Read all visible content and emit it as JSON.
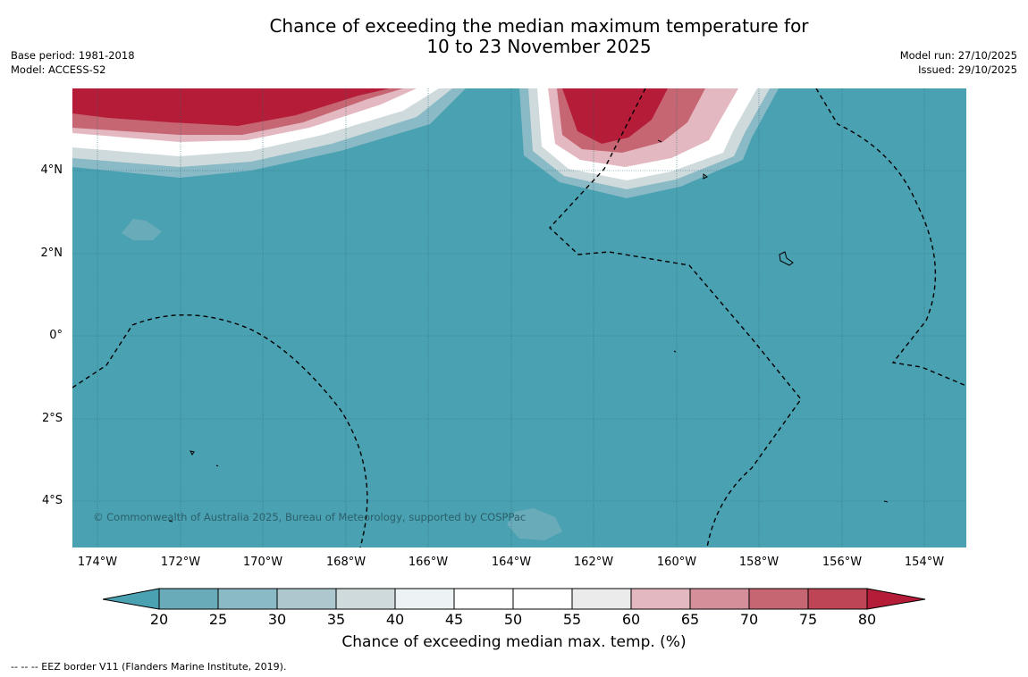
{
  "title": {
    "line1": "Chance of exceeding the median maximum temperature for",
    "line2": "10 to 23 November 2025"
  },
  "meta_left": {
    "base_period": "Base period: 1981-2018",
    "model": "Model: ACCESS-S2"
  },
  "meta_right": {
    "model_run": "Model run: 27/10/2025",
    "issued": "Issued: 29/10/2025"
  },
  "map": {
    "copyright": "© Commonwealth of Australia 2025, Bureau of Meteorology, supported by COSPPac",
    "lat_labels": [
      "4°N",
      "2°N",
      "0°",
      "2°S",
      "4°S"
    ],
    "lon_labels": [
      "174°W",
      "172°W",
      "170°W",
      "168°W",
      "166°W",
      "164°W",
      "162°W",
      "160°W",
      "158°W",
      "156°W",
      "154°W"
    ],
    "background_class": "20-25",
    "colors": {
      "below_20": "#4aa1b2",
      "c20_25": "#6aabba",
      "c25_30": "#8abac6",
      "c30_35": "#acc8ce",
      "c35_40": "#cfdadc",
      "c40_45": "#edf3f4",
      "c45_55": "#ffffff",
      "c55_60": "#ebebeb",
      "c60_65": "#e4b8c0",
      "c65_70": "#d58f9a",
      "c70_75": "#c66672",
      "c75_80": "#bd4556",
      "above_80": "#b41c38"
    }
  },
  "colorbar": {
    "ticks": [
      "20",
      "25",
      "30",
      "35",
      "40",
      "45",
      "50",
      "55",
      "60",
      "65",
      "70",
      "75",
      "80"
    ],
    "label": "Chance of exceeding median max. temp. (%)"
  },
  "footer": {
    "eez": "--  --  -- EEZ border V11 (Flanders Marine Institute, 2019)."
  }
}
